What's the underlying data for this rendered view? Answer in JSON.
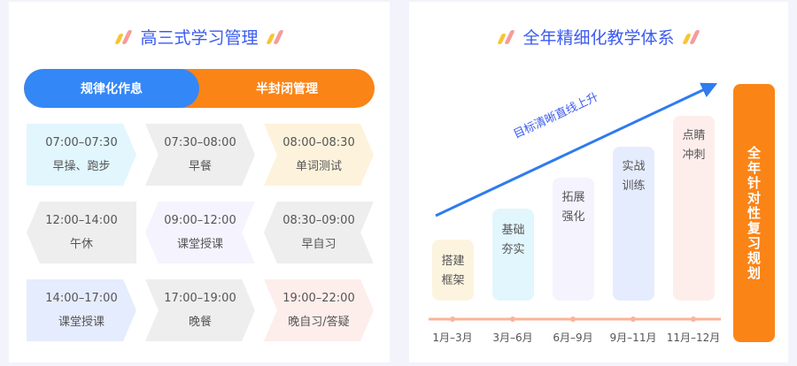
{
  "left": {
    "title": "高三式学习管理",
    "toggle": [
      "规律化作息",
      "半封闭管理"
    ],
    "cells": [
      {
        "time": "07:00–07:30",
        "label": "早操、跑步",
        "color": "#e2f6fd"
      },
      {
        "time": "07:30–08:00",
        "label": "早餐",
        "color": "#eeeeee"
      },
      {
        "time": "08:00–08:30",
        "label": "单词测试",
        "color": "#fdf3dc"
      },
      {
        "time": "12:00–14:00",
        "label": "午休",
        "color": "#eeeeee"
      },
      {
        "time": "09:00–12:00",
        "label": "课堂授课",
        "color": "#f5f3fd"
      },
      {
        "time": "08:30–09:00",
        "label": "早自习",
        "color": "#eeeeee"
      },
      {
        "time": "14:00–17:00",
        "label": "课堂授课",
        "color": "#e5ecfd"
      },
      {
        "time": "17:00–19:00",
        "label": "晚餐",
        "color": "#eeeeee"
      },
      {
        "time": "19:00–22:00",
        "label": "晚自习/答疑",
        "color": "#fdeeec"
      }
    ]
  },
  "right": {
    "title": "全年精细化教学体系",
    "arrow_label": "目标清晰直线上升",
    "stages": [
      {
        "label": "搭建框架",
        "months": "1月–3月",
        "color": "#fdf4e0",
        "level": 1
      },
      {
        "label": "基础夯实",
        "months": "3月–6月",
        "color": "#e2f6fd",
        "level": 2
      },
      {
        "label": "拓展强化",
        "months": "6月–9月",
        "color": "#f5f3fd",
        "level": 3
      },
      {
        "label": "实战训练",
        "months": "9月–11月",
        "color": "#e5ecfd",
        "level": 4
      },
      {
        "label": "点睛冲刺",
        "months": "11月–12月",
        "color": "#fdeeec",
        "level": 5
      }
    ],
    "final": "全年针对性复习规划",
    "final_color": "#fb8417"
  }
}
